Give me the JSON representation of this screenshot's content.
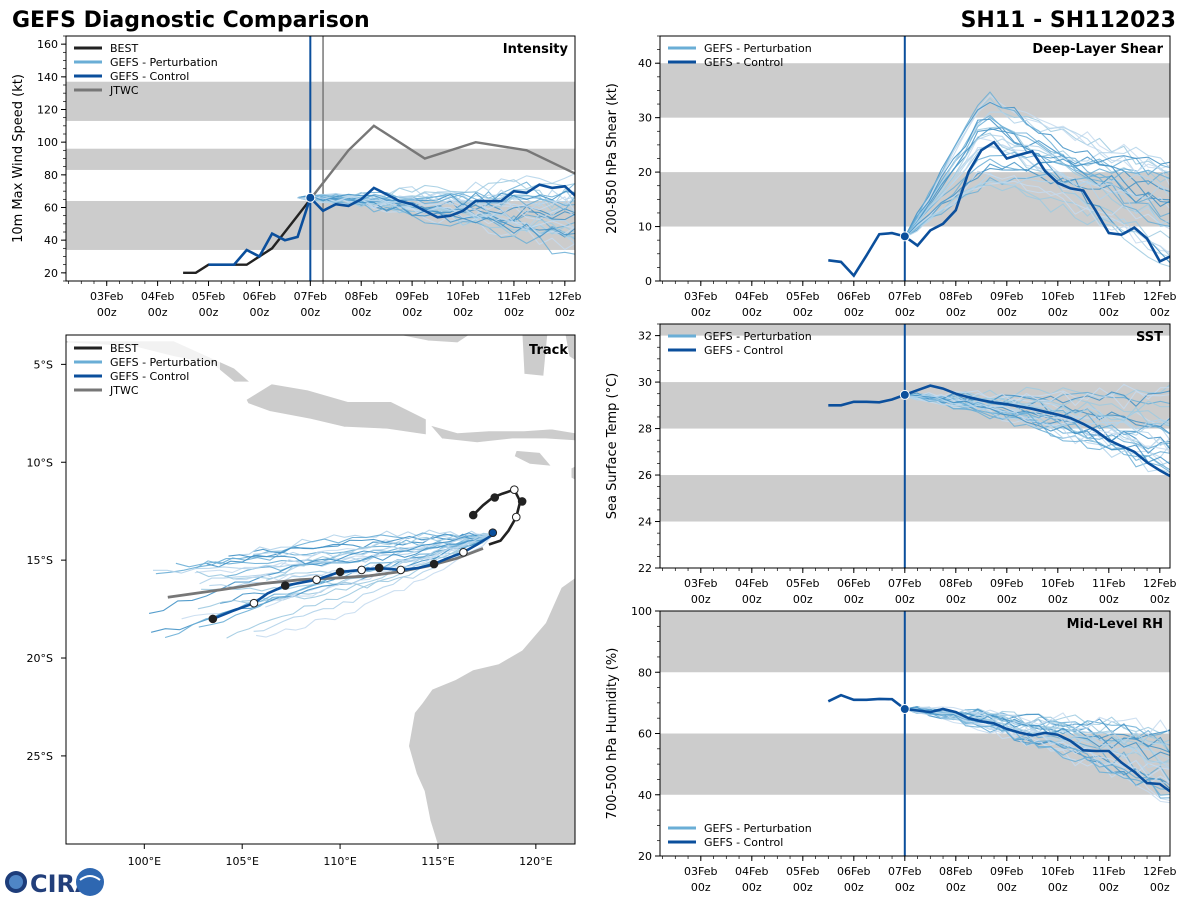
{
  "figure": {
    "title_left": "GEFS Diagnostic Comparison",
    "title_right": "SH11 - SH112023",
    "logo_text": "CIRA"
  },
  "colors": {
    "best": "#222222",
    "perturbation": "#6aaed6",
    "control": "#0b4f9c",
    "jtwc": "#777777",
    "band": "#cccccc",
    "land": "#cccccc",
    "init_line": "#0b4f9c"
  },
  "chart_data": [
    {
      "id": "intensity",
      "type": "line",
      "title": "Intensity",
      "ylabel": "10m Max Wind Speed (kt)",
      "xlim": [
        -4.8,
        5.2
      ],
      "ylim": [
        15,
        165
      ],
      "yticks": [
        20,
        40,
        60,
        80,
        100,
        120,
        140,
        160
      ],
      "x_ticks": [
        -4,
        -3,
        -2,
        -1,
        0,
        1,
        2,
        3,
        4,
        5
      ],
      "x_tick_labels": [
        [
          "03Feb",
          "00z"
        ],
        [
          "04Feb",
          "00z"
        ],
        [
          "05Feb",
          "00z"
        ],
        [
          "06Feb",
          "00z"
        ],
        [
          "07Feb",
          "00z"
        ],
        [
          "08Feb",
          "00z"
        ],
        [
          "09Feb",
          "00z"
        ],
        [
          "10Feb",
          "00z"
        ],
        [
          "11Feb",
          "00z"
        ],
        [
          "12Feb",
          "00z"
        ]
      ],
      "bands": [
        [
          34,
          64
        ],
        [
          83,
          96
        ],
        [
          113,
          137
        ]
      ],
      "init_x": 0,
      "extra_vline_x": 0.25,
      "legend": [
        "BEST",
        "GEFS - Perturbation",
        "GEFS - Control",
        "JTWC"
      ],
      "series": [
        {
          "name": "BEST",
          "role": "best",
          "x": [
            -2.5,
            -2.25,
            -2,
            -1.75,
            -1.5,
            -1.25,
            -1,
            -0.75,
            -0.5,
            -0.25,
            0
          ],
          "y": [
            20,
            20,
            25,
            25,
            25,
            25,
            30,
            35,
            45,
            55,
            65
          ]
        },
        {
          "name": "GEFS - Control",
          "role": "control",
          "x": [
            -2,
            -1.75,
            -1.5,
            -1.25,
            -1,
            -0.75,
            -0.5,
            -0.25,
            0,
            0.25,
            0.5,
            0.75,
            1,
            1.25,
            1.5,
            1.75,
            2,
            2.25,
            2.5,
            2.75,
            3,
            3.25,
            3.5,
            3.75,
            4,
            4.25,
            4.5,
            4.75,
            5,
            5.25
          ],
          "y": [
            25,
            25,
            25,
            34,
            30,
            44,
            40,
            42,
            66,
            58,
            62,
            61,
            65,
            72,
            68,
            64,
            62,
            58,
            54,
            55,
            58,
            64,
            64,
            64,
            70,
            69,
            74,
            72,
            73,
            66
          ]
        },
        {
          "name": "JTWC",
          "role": "jtwc",
          "x": [
            0,
            0.25,
            0.75,
            1.25,
            2.25,
            3.25,
            4.25,
            5.25
          ],
          "y": [
            65,
            75,
            95,
            110,
            90,
            100,
            95,
            80
          ]
        }
      ],
      "perturbation": {
        "count": 30,
        "x_start": -0.25,
        "x_end": 5.25,
        "start_y": 66,
        "end_range": [
          28,
          80
        ]
      },
      "init_marker": {
        "x": 0,
        "y": 66
      }
    },
    {
      "id": "shear",
      "type": "line",
      "title": "Deep-Layer Shear",
      "ylabel": "200-850 hPa Shear (kt)",
      "xlim": [
        -4.8,
        5.2
      ],
      "ylim": [
        0,
        45
      ],
      "yticks": [
        0,
        10,
        20,
        30,
        40
      ],
      "x_ticks": [
        -4,
        -3,
        -2,
        -1,
        0,
        1,
        2,
        3,
        4,
        5
      ],
      "x_tick_labels": [
        [
          "03Feb",
          "00z"
        ],
        [
          "04Feb",
          "00z"
        ],
        [
          "05Feb",
          "00z"
        ],
        [
          "06Feb",
          "00z"
        ],
        [
          "07Feb",
          "00z"
        ],
        [
          "08Feb",
          "00z"
        ],
        [
          "09Feb",
          "00z"
        ],
        [
          "10Feb",
          "00z"
        ],
        [
          "11Feb",
          "00z"
        ],
        [
          "12Feb",
          "00z"
        ]
      ],
      "bands": [
        [
          10,
          20
        ],
        [
          30,
          40
        ]
      ],
      "init_x": 0,
      "legend": [
        "GEFS - Perturbation",
        "GEFS - Control"
      ],
      "series": [
        {
          "name": "GEFS - Control",
          "role": "control",
          "x": [
            -1.5,
            -1.25,
            -1,
            -0.75,
            -0.5,
            -0.25,
            0,
            0.25,
            0.5,
            0.75,
            1,
            1.25,
            1.5,
            1.75,
            2,
            2.25,
            2.5,
            2.75,
            3,
            3.25,
            3.5,
            3.75,
            4,
            4.25,
            4.5,
            4.75,
            5,
            5.25
          ],
          "y": [
            3.8,
            3.5,
            1.0,
            4.7,
            8.6,
            8.8,
            8.2,
            6.5,
            9.3,
            10.5,
            13,
            20,
            24,
            25.5,
            22.5,
            23.2,
            23.8,
            20.2,
            18,
            17,
            16.6,
            12.8,
            8.8,
            8.5,
            9.8,
            7.8,
            3.6,
            4.7
          ]
        }
      ],
      "perturbation": {
        "count": 30,
        "x_start": 0,
        "x_end": 5.25,
        "start_y": 8,
        "peak_range": [
          18,
          36
        ],
        "end_range": [
          2,
          22
        ]
      },
      "init_marker": {
        "x": 0,
        "y": 8.2
      }
    },
    {
      "id": "sst",
      "type": "line",
      "title": "SST",
      "ylabel": "Sea Surface Temp (°C)",
      "xlim": [
        -4.8,
        5.2
      ],
      "ylim": [
        22,
        32.5
      ],
      "yticks": [
        22,
        24,
        26,
        28,
        30,
        32
      ],
      "x_ticks": [
        -4,
        -3,
        -2,
        -1,
        0,
        1,
        2,
        3,
        4,
        5
      ],
      "x_tick_labels": [
        [
          "03Feb",
          "00z"
        ],
        [
          "04Feb",
          "00z"
        ],
        [
          "05Feb",
          "00z"
        ],
        [
          "06Feb",
          "00z"
        ],
        [
          "07Feb",
          "00z"
        ],
        [
          "08Feb",
          "00z"
        ],
        [
          "09Feb",
          "00z"
        ],
        [
          "10Feb",
          "00z"
        ],
        [
          "11Feb",
          "00z"
        ],
        [
          "12Feb",
          "00z"
        ]
      ],
      "bands": [
        [
          24,
          26
        ],
        [
          28,
          30
        ],
        [
          32,
          34
        ]
      ],
      "init_x": 0,
      "legend": [
        "GEFS - Perturbation",
        "GEFS - Control"
      ],
      "series": [
        {
          "name": "GEFS - Control",
          "role": "control",
          "x": [
            -1.5,
            -1.25,
            -1,
            -0.75,
            -0.5,
            -0.25,
            0,
            0.25,
            0.5,
            0.75,
            1,
            1.25,
            1.5,
            1.75,
            2,
            2.25,
            2.5,
            2.75,
            3,
            3.25,
            3.5,
            3.75,
            4,
            4.25,
            4.5,
            4.75,
            5,
            5.25
          ],
          "y": [
            29.0,
            29.0,
            29.15,
            29.15,
            29.13,
            29.25,
            29.45,
            29.65,
            29.85,
            29.72,
            29.5,
            29.35,
            29.22,
            29.12,
            29.05,
            28.95,
            28.85,
            28.72,
            28.6,
            28.45,
            28.2,
            27.9,
            27.5,
            27.25,
            27.0,
            26.55,
            26.2,
            25.9
          ]
        }
      ],
      "perturbation": {
        "count": 30,
        "x_start": 0,
        "x_end": 5.25,
        "start_y": 29.4,
        "end_range": [
          26.0,
          29.8
        ]
      },
      "init_marker": {
        "x": 0,
        "y": 29.45
      }
    },
    {
      "id": "rh",
      "type": "line",
      "title": "Mid-Level RH",
      "ylabel": "700-500 hPa Humidity (%)",
      "xlim": [
        -4.8,
        5.2
      ],
      "ylim": [
        20,
        100
      ],
      "yticks": [
        20,
        40,
        60,
        80,
        100
      ],
      "x_ticks": [
        -4,
        -3,
        -2,
        -1,
        0,
        1,
        2,
        3,
        4,
        5
      ],
      "x_tick_labels": [
        [
          "03Feb",
          "00z"
        ],
        [
          "04Feb",
          "00z"
        ],
        [
          "05Feb",
          "00z"
        ],
        [
          "06Feb",
          "00z"
        ],
        [
          "07Feb",
          "00z"
        ],
        [
          "08Feb",
          "00z"
        ],
        [
          "09Feb",
          "00z"
        ],
        [
          "10Feb",
          "00z"
        ],
        [
          "11Feb",
          "00z"
        ],
        [
          "12Feb",
          "00z"
        ]
      ],
      "bands": [
        [
          40,
          60
        ],
        [
          80,
          100
        ]
      ],
      "init_x": 0,
      "legend": [
        "GEFS - Perturbation",
        "GEFS - Control"
      ],
      "series": [
        {
          "name": "GEFS - Control",
          "role": "control",
          "x": [
            -1.5,
            -1.25,
            -1,
            -0.75,
            -0.5,
            -0.25,
            0,
            0.25,
            0.5,
            0.75,
            1,
            1.25,
            1.5,
            1.75,
            2,
            2.25,
            2.5,
            2.75,
            3,
            3.25,
            3.5,
            3.75,
            4,
            4.25,
            4.5,
            4.75,
            5,
            5.25
          ],
          "y": [
            70.5,
            72.5,
            71,
            71,
            71.3,
            71.2,
            68,
            67.5,
            67,
            68,
            67,
            65,
            64,
            63.3,
            61.5,
            60.3,
            59.4,
            60.2,
            59.6,
            57.6,
            54.5,
            54.3,
            54.3,
            50.5,
            47.5,
            43.8,
            43.5,
            40.5
          ]
        }
      ],
      "perturbation": {
        "count": 30,
        "x_start": 0,
        "x_end": 5.25,
        "start_y": 68,
        "end_range": [
          38,
          62
        ]
      },
      "init_marker": {
        "x": 0,
        "y": 68
      }
    },
    {
      "id": "track",
      "type": "map",
      "title": "Track",
      "xlim": [
        96,
        122
      ],
      "ylim": [
        -29.5,
        -3.5
      ],
      "xticks": [
        100,
        105,
        110,
        115,
        120
      ],
      "xtick_labels": [
        "100°E",
        "105°E",
        "110°E",
        "115°E",
        "120°E"
      ],
      "yticks": [
        -5,
        -10,
        -15,
        -20,
        -25
      ],
      "ytick_labels": [
        "5°S",
        "10°S",
        "15°S",
        "20°S",
        "25°S"
      ],
      "legend": [
        "BEST",
        "GEFS - Perturbation",
        "GEFS - Control",
        "JTWC"
      ],
      "best_track": {
        "lon": [
          116.8,
          117.3,
          117.8,
          118.3,
          118.9,
          119.2,
          119.0,
          118.6,
          118.2,
          117.6
        ],
        "lat": [
          -12.7,
          -12.2,
          -11.8,
          -11.6,
          -11.4,
          -12.0,
          -12.8,
          -13.5,
          -14.0,
          -14.2
        ]
      },
      "best_points": [
        {
          "lon": 116.8,
          "lat": -12.7,
          "fill": "filled"
        },
        {
          "lon": 117.9,
          "lat": -11.8,
          "fill": "filled"
        },
        {
          "lon": 118.9,
          "lat": -11.4,
          "fill": "open"
        },
        {
          "lon": 119.3,
          "lat": -12.0,
          "fill": "filled"
        },
        {
          "lon": 119.0,
          "lat": -12.8,
          "fill": "open"
        }
      ],
      "control_track": {
        "lon": [
          117.8,
          117.0,
          116.3,
          115.5,
          114.8,
          114.0,
          113.1,
          112.0,
          111.1,
          110.0,
          108.8,
          107.2,
          106.3,
          105.6,
          104.5,
          103.5
        ],
        "lat": [
          -13.7,
          -14.2,
          -14.6,
          -14.9,
          -15.2,
          -15.4,
          -15.5,
          -15.4,
          -15.5,
          -15.6,
          -16.0,
          -16.3,
          -16.7,
          -17.2,
          -17.6,
          -18.0
        ]
      },
      "control_points": [
        {
          "lon": 117.8,
          "lat": -13.6,
          "fill": "control"
        },
        {
          "lon": 116.3,
          "lat": -14.6,
          "fill": "open"
        },
        {
          "lon": 114.8,
          "lat": -15.2,
          "fill": "filled"
        },
        {
          "lon": 113.1,
          "lat": -15.5,
          "fill": "open"
        },
        {
          "lon": 112.0,
          "lat": -15.4,
          "fill": "filled"
        },
        {
          "lon": 111.1,
          "lat": -15.5,
          "fill": "open"
        },
        {
          "lon": 110.0,
          "lat": -15.6,
          "fill": "filled"
        },
        {
          "lon": 108.8,
          "lat": -16.0,
          "fill": "open"
        },
        {
          "lon": 107.2,
          "lat": -16.3,
          "fill": "filled"
        },
        {
          "lon": 105.6,
          "lat": -17.2,
          "fill": "open"
        },
        {
          "lon": 103.5,
          "lat": -18.0,
          "fill": "filled"
        }
      ],
      "jtwc_track": {
        "lon": [
          117.3,
          116.0,
          114.5,
          113.0,
          111.5,
          110.0,
          108.0,
          106.0,
          104.0,
          101.2
        ],
        "lat": [
          -14.4,
          -14.9,
          -15.3,
          -15.6,
          -15.8,
          -15.9,
          -16.0,
          -16.2,
          -16.5,
          -16.9
        ]
      },
      "perturbation": {
        "count": 30,
        "start_lon": 117.8,
        "start_lat": -13.7,
        "end_lon_range": [
          99.5,
          106.5
        ],
        "end_lat_range": [
          -14.5,
          -19.0
        ]
      }
    }
  ]
}
